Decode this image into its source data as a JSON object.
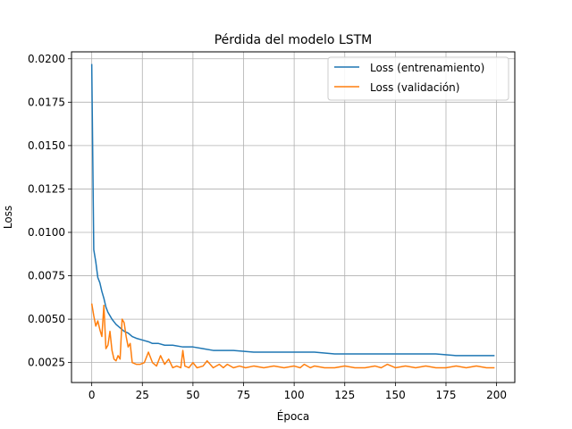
{
  "chart_data": {
    "type": "line",
    "title": "Pérdida del modelo LSTM",
    "xlabel": "Época",
    "ylabel": "Loss",
    "xlim": [
      -10,
      209
    ],
    "ylim": [
      0.00135,
      0.0204
    ],
    "xticks": [
      0,
      25,
      50,
      75,
      100,
      125,
      150,
      175,
      200
    ],
    "yticks": [
      0.0025,
      0.005,
      0.0075,
      0.01,
      0.0125,
      0.015,
      0.0175,
      0.02
    ],
    "ytick_labels": [
      "0.0025",
      "0.0050",
      "0.0075",
      "0.0100",
      "0.0125",
      "0.0150",
      "0.0175",
      "0.0200"
    ],
    "grid": true,
    "legend_position": "top-right",
    "colors": {
      "train": "#1f77b4",
      "val": "#ff7f0e"
    },
    "series": [
      {
        "name": "Loss (entrenamiento)",
        "x": [
          0,
          1,
          2,
          3,
          4,
          5,
          6,
          7,
          8,
          9,
          10,
          12,
          14,
          16,
          18,
          20,
          22,
          25,
          28,
          30,
          33,
          36,
          40,
          45,
          50,
          55,
          60,
          70,
          80,
          90,
          100,
          110,
          120,
          130,
          140,
          150,
          160,
          170,
          180,
          190,
          199
        ],
        "y": [
          0.0197,
          0.009,
          0.0083,
          0.0074,
          0.0071,
          0.0066,
          0.0062,
          0.0057,
          0.0054,
          0.0052,
          0.005,
          0.0047,
          0.0045,
          0.0043,
          0.0042,
          0.004,
          0.0039,
          0.0038,
          0.0037,
          0.0036,
          0.0036,
          0.0035,
          0.0035,
          0.0034,
          0.0034,
          0.0033,
          0.0032,
          0.0032,
          0.0031,
          0.0031,
          0.0031,
          0.0031,
          0.003,
          0.003,
          0.003,
          0.003,
          0.003,
          0.003,
          0.0029,
          0.0029,
          0.0029
        ]
      },
      {
        "name": "Loss (validación)",
        "x": [
          0,
          1,
          2,
          3,
          4,
          5,
          6,
          7,
          8,
          9,
          10,
          11,
          12,
          13,
          14,
          15,
          16,
          17,
          18,
          19,
          20,
          22,
          24,
          26,
          28,
          30,
          32,
          34,
          36,
          38,
          40,
          42,
          44,
          45,
          46,
          48,
          50,
          52,
          55,
          57,
          60,
          63,
          65,
          67,
          70,
          73,
          76,
          80,
          85,
          90,
          95,
          100,
          103,
          105,
          108,
          110,
          115,
          120,
          125,
          130,
          135,
          140,
          143,
          146,
          150,
          155,
          160,
          165,
          170,
          175,
          180,
          185,
          190,
          195,
          199
        ],
        "y": [
          0.0059,
          0.0052,
          0.0046,
          0.0049,
          0.0044,
          0.004,
          0.0058,
          0.0033,
          0.0035,
          0.0043,
          0.0032,
          0.0027,
          0.0026,
          0.0029,
          0.0027,
          0.005,
          0.0048,
          0.004,
          0.0034,
          0.0036,
          0.0025,
          0.0024,
          0.0024,
          0.0025,
          0.0031,
          0.0025,
          0.0023,
          0.0029,
          0.0024,
          0.0027,
          0.0022,
          0.0023,
          0.0022,
          0.0032,
          0.0023,
          0.0022,
          0.0025,
          0.0022,
          0.0023,
          0.0026,
          0.0022,
          0.0024,
          0.0022,
          0.0024,
          0.0022,
          0.0023,
          0.0022,
          0.0023,
          0.0022,
          0.0023,
          0.0022,
          0.0023,
          0.0022,
          0.0024,
          0.0022,
          0.0023,
          0.0022,
          0.0022,
          0.0023,
          0.0022,
          0.0022,
          0.0023,
          0.0022,
          0.0024,
          0.0022,
          0.0023,
          0.0022,
          0.0023,
          0.0022,
          0.0022,
          0.0023,
          0.0022,
          0.0023,
          0.0022,
          0.0022
        ]
      }
    ]
  }
}
